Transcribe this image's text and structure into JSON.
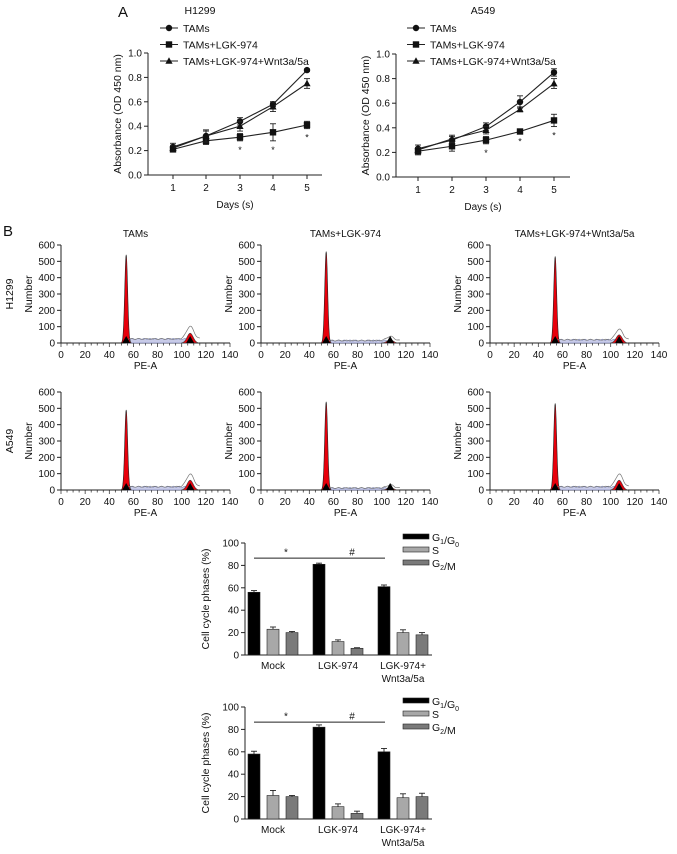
{
  "panel_labels": [
    "A",
    "B"
  ],
  "chart_data": [
    {
      "type": "line",
      "title": "H1299",
      "xlabel": "Days (s)",
      "ylabel": "Absorbance (OD 450 nm)",
      "x": [
        1,
        2,
        3,
        4,
        5
      ],
      "xticks": [
        "1",
        "2",
        "3",
        "4",
        "5"
      ],
      "ylim": [
        0,
        1.0
      ],
      "yticks": [
        "0.0",
        "0.2",
        "0.4",
        "0.6",
        "0.8",
        "1.0"
      ],
      "legend_position": "top",
      "series": [
        {
          "name": "TAMs",
          "marker": "circle",
          "values": [
            0.23,
            0.32,
            0.44,
            0.58,
            0.86
          ],
          "errors": [
            0.03,
            0.04,
            0.03,
            0.02,
            0.01
          ]
        },
        {
          "name": "TAMs+LGK-974",
          "marker": "square",
          "values": [
            0.21,
            0.28,
            0.31,
            0.35,
            0.41
          ],
          "errors": [
            0.02,
            0.03,
            0.03,
            0.07,
            0.03
          ]
        },
        {
          "name": "TAMs+LGK-974+Wnt3a/5a",
          "marker": "triangle",
          "values": [
            0.22,
            0.32,
            0.4,
            0.56,
            0.75
          ],
          "errors": [
            0.02,
            0.05,
            0.04,
            0.04,
            0.04
          ]
        }
      ],
      "annotations": [
        {
          "x": 3,
          "text": "*"
        },
        {
          "x": 4,
          "text": "*"
        },
        {
          "x": 5,
          "text": "*"
        }
      ]
    },
    {
      "type": "line",
      "title": "A549",
      "xlabel": "Days (s)",
      "ylabel": "Absorbance (OD 450 nm)",
      "x": [
        1,
        2,
        3,
        4,
        5
      ],
      "xticks": [
        "1",
        "2",
        "3",
        "4",
        "5"
      ],
      "ylim": [
        0,
        1.0
      ],
      "yticks": [
        "0.0",
        "0.2",
        "0.4",
        "0.6",
        "0.8",
        "1.0"
      ],
      "legend_position": "top",
      "series": [
        {
          "name": "TAMs",
          "marker": "circle",
          "values": [
            0.23,
            0.3,
            0.41,
            0.61,
            0.85
          ],
          "errors": [
            0.03,
            0.03,
            0.03,
            0.05,
            0.03
          ]
        },
        {
          "name": "TAMs+LGK-974",
          "marker": "square",
          "values": [
            0.21,
            0.25,
            0.3,
            0.37,
            0.46
          ],
          "errors": [
            0.03,
            0.04,
            0.03,
            0.01,
            0.05
          ]
        },
        {
          "name": "TAMs+LGK-974+Wnt3a/5a",
          "marker": "triangle",
          "values": [
            0.22,
            0.31,
            0.38,
            0.55,
            0.76
          ],
          "errors": [
            0.02,
            0.03,
            0.03,
            0.02,
            0.04
          ]
        }
      ],
      "annotations": [
        {
          "x": 3,
          "text": "*"
        },
        {
          "x": 4,
          "text": "*"
        },
        {
          "x": 5,
          "text": "*"
        }
      ]
    },
    {
      "type": "area",
      "subtype": "flow-histograms",
      "columns": [
        "TAMs",
        "TAMs+LGK-974",
        "TAMs+LGK-974+Wnt3a/5a"
      ],
      "rows": [
        "H1299",
        "A549"
      ],
      "xlabel": "PE-A",
      "ylabel": "Number",
      "xlim": [
        0,
        140
      ],
      "xticks": [
        "0",
        "20",
        "40",
        "60",
        "80",
        "100",
        "120",
        "140"
      ],
      "ylim": [
        0,
        600
      ],
      "yticks": [
        "0",
        "100",
        "200",
        "300",
        "400",
        "500",
        "600"
      ],
      "g1_peak_position": 54,
      "g2_peak_position": 107,
      "peaks": [
        [
          {
            "g1": 540,
            "g2": 60,
            "s": 25
          },
          {
            "g1": 560,
            "g2": 20,
            "s": 15
          },
          {
            "g1": 530,
            "g2": 50,
            "s": 20
          }
        ],
        [
          {
            "g1": 490,
            "g2": 60,
            "s": 20
          },
          {
            "g1": 540,
            "g2": 15,
            "s": 12
          },
          {
            "g1": 530,
            "g2": 60,
            "s": 20
          }
        ]
      ]
    },
    {
      "type": "bar",
      "ylabel": "Cell cycle phases (%)",
      "categories": [
        "Mock",
        "LGK-974",
        "LGK-974+\nWnt3a/5a"
      ],
      "ylim": [
        0,
        100
      ],
      "yticks": [
        "0",
        "20",
        "40",
        "60",
        "80",
        "100"
      ],
      "legend_position": "top-right",
      "series": [
        {
          "name": "G1/G0",
          "values": [
            56,
            81,
            61
          ],
          "errors": [
            1.5,
            1,
            1.5
          ]
        },
        {
          "name": "S",
          "values": [
            23,
            12,
            20
          ],
          "errors": [
            2,
            1.5,
            2.5
          ]
        },
        {
          "name": "G2/M",
          "values": [
            20,
            6,
            18
          ],
          "errors": [
            1,
            0.5,
            2
          ]
        }
      ],
      "significance": [
        {
          "from": "Mock",
          "to": "LGK-974",
          "text": "*"
        },
        {
          "from": "LGK-974",
          "to": "LGK-974+Wnt3a/5a",
          "text": "#"
        }
      ]
    },
    {
      "type": "bar",
      "ylabel": "Cell cycle phases (%)",
      "categories": [
        "Mock",
        "LGK-974",
        "LGK-974+\nWnt3a/5a"
      ],
      "ylim": [
        0,
        100
      ],
      "yticks": [
        "0",
        "20",
        "40",
        "60",
        "80",
        "100"
      ],
      "legend_position": "top-right",
      "series": [
        {
          "name": "G1/G0",
          "values": [
            58,
            82,
            60
          ],
          "errors": [
            2.5,
            2,
            3
          ]
        },
        {
          "name": "S",
          "values": [
            21,
            11,
            19
          ],
          "errors": [
            4.5,
            2.5,
            3.5
          ]
        },
        {
          "name": "G2/M",
          "values": [
            20,
            5,
            20
          ],
          "errors": [
            1,
            2,
            3
          ]
        }
      ],
      "significance": [
        {
          "from": "Mock",
          "to": "LGK-974",
          "text": "*"
        },
        {
          "from": "LGK-974",
          "to": "LGK-974+Wnt3a/5a",
          "text": "#"
        }
      ]
    }
  ],
  "colors": {
    "g1_fill": "#e8000b",
    "s_fill": "#c8cbe8",
    "bar_g1": "#000000",
    "bar_s": "#a8a8a8",
    "bar_g2": "#7a7a7a"
  }
}
